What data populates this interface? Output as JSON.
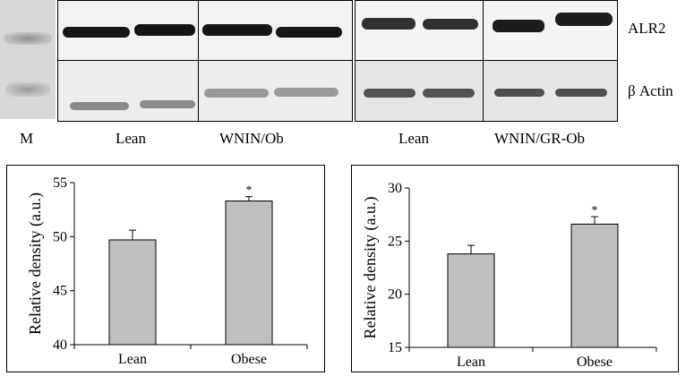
{
  "blot": {
    "marker_label": "M",
    "protein_labels": [
      "ALR2",
      "β Actin"
    ],
    "group_labels": [
      "Lean",
      "WNIN/Ob",
      "Lean",
      "WNIN/GR-Ob"
    ]
  },
  "chart_data": [
    {
      "type": "bar",
      "categories": [
        "Lean",
        "Obese"
      ],
      "values": [
        49.7,
        53.3
      ],
      "errors": [
        0.9,
        0.4
      ],
      "significance": [
        "",
        "*"
      ],
      "ylabel": "Relative density (a.u.)",
      "ylim": [
        40,
        55
      ],
      "yticks": [
        40,
        45,
        50,
        55
      ],
      "grid": false,
      "bar_color": "#bfbfbf"
    },
    {
      "type": "bar",
      "categories": [
        "Lean",
        "Obese"
      ],
      "values": [
        23.8,
        26.6
      ],
      "errors": [
        0.8,
        0.7
      ],
      "significance": [
        "",
        "*"
      ],
      "ylabel": "Relative density (a.u.)",
      "ylim": [
        15,
        30
      ],
      "yticks": [
        15,
        20,
        25,
        30
      ],
      "grid": false,
      "bar_color": "#bfbfbf"
    }
  ]
}
